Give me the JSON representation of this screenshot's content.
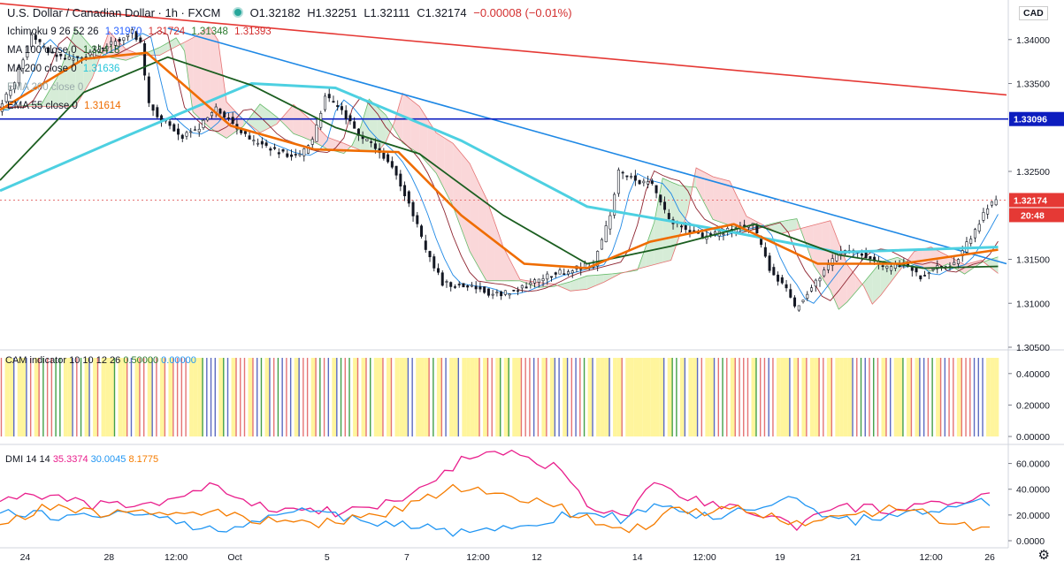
{
  "header": {
    "symbol": "U.S. Dollar / Canadian Dollar · 1h · FXCM",
    "ohlc": {
      "o": "O1.32182",
      "h": "H1.32251",
      "l": "L1.32111",
      "c": "C1.32174",
      "chg": "−0.00008 (−0.01%)"
    },
    "currency": "CAD"
  },
  "legends": {
    "ichimoku": {
      "label": "Ichimoku 9 26 52 26",
      "v1": "1.31970",
      "v2": "1.31724",
      "v3": "1.31348",
      "v4": "1.31393"
    },
    "ma100": {
      "label": "MA 100 close 0",
      "value": "1.31418"
    },
    "ma200": {
      "label": "MA 200 close 0",
      "value": "1.31636"
    },
    "ema200": {
      "label": "EMA 200 close 0",
      "value": ""
    },
    "ema55": {
      "label": "EMA 55 close 0",
      "value": "1.31614"
    },
    "cam": {
      "label": "CAM indicator 10 10 12 26",
      "v1": "0.50000",
      "v2": "0.00000"
    },
    "dmi": {
      "label": "DMI 14 14",
      "v1": "35.3374",
      "v2": "30.0045",
      "v3": "8.1775"
    }
  },
  "price_tags": {
    "hline": "1.33096",
    "last": "1.32174",
    "countdown": "20:48"
  },
  "colors": {
    "up_candle": "#26a69a",
    "candle": "#131722",
    "trend_red": "#e53935",
    "trend_blue": "#1e88e5",
    "hline": "#0d1dbf",
    "ema200": "#4dd0e1",
    "ema55": "#ef6c00",
    "ma100": "#1b5e20",
    "kumo_bear": "#f8c9cc",
    "kumo_bull": "#c8e6c9",
    "cam_red": "#e57373",
    "cam_blue": "#5c6bc0",
    "cam_yellow": "#fff59d",
    "cam_green": "#43a047",
    "dmi_plus": "#e91e8c",
    "dmi_minus": "#2196f3",
    "adx": "#f57c00"
  },
  "chart_data": [
    {
      "type": "candlestick",
      "title": "U.S. Dollar / Canadian Dollar · 1h · FXCM",
      "ylim": [
        1.305,
        1.3445
      ],
      "y_ticks": [
        "1.34000",
        "1.33500",
        "1.33096",
        "1.32500",
        "1.32174",
        "1.31500",
        "1.31000",
        "1.30500"
      ],
      "x_ticks": [
        "24",
        "28",
        "12:00",
        "Oct",
        "5",
        "7",
        "12:00",
        "12",
        "14",
        "12:00",
        "19",
        "21",
        "12:00",
        "26"
      ],
      "close_path": [
        [
          0,
          1.332
        ],
        [
          4,
          1.3352
        ],
        [
          8,
          1.3405
        ],
        [
          12,
          1.3385
        ],
        [
          16,
          1.3378
        ],
        [
          20,
          1.3378
        ],
        [
          24,
          1.3388
        ],
        [
          28,
          1.3398
        ],
        [
          32,
          1.341
        ],
        [
          34,
          1.3395
        ],
        [
          36,
          1.3325
        ],
        [
          40,
          1.3305
        ],
        [
          44,
          1.329
        ],
        [
          48,
          1.33
        ],
        [
          52,
          1.3322
        ],
        [
          56,
          1.3305
        ],
        [
          60,
          1.3285
        ],
        [
          64,
          1.3278
        ],
        [
          68,
          1.327
        ],
        [
          72,
          1.3268
        ],
        [
          75,
          1.3285
        ],
        [
          78,
          1.3335
        ],
        [
          82,
          1.332
        ],
        [
          86,
          1.329
        ],
        [
          90,
          1.3278
        ],
        [
          94,
          1.3255
        ],
        [
          98,
          1.3215
        ],
        [
          102,
          1.316
        ],
        [
          106,
          1.3123
        ],
        [
          110,
          1.312
        ],
        [
          114,
          1.3118
        ],
        [
          118,
          1.311
        ],
        [
          122,
          1.3112
        ],
        [
          126,
          1.312
        ],
        [
          130,
          1.313
        ],
        [
          134,
          1.3135
        ],
        [
          138,
          1.314
        ],
        [
          142,
          1.3145
        ],
        [
          146,
          1.32
        ],
        [
          148,
          1.325
        ],
        [
          152,
          1.324
        ],
        [
          156,
          1.3235
        ],
        [
          160,
          1.3195
        ],
        [
          164,
          1.3185
        ],
        [
          168,
          1.3175
        ],
        [
          172,
          1.318
        ],
        [
          176,
          1.3185
        ],
        [
          180,
          1.319
        ],
        [
          184,
          1.314
        ],
        [
          188,
          1.3115
        ],
        [
          190,
          1.3095
        ],
        [
          192,
          1.3105
        ],
        [
          196,
          1.313
        ],
        [
          200,
          1.3155
        ],
        [
          204,
          1.316
        ],
        [
          208,
          1.315
        ],
        [
          212,
          1.314
        ],
        [
          216,
          1.3145
        ],
        [
          220,
          1.313
        ],
        [
          224,
          1.314
        ],
        [
          228,
          1.3145
        ],
        [
          232,
          1.3175
        ],
        [
          236,
          1.321
        ],
        [
          238,
          1.3217
        ]
      ],
      "ema200": [
        [
          0,
          1.3228
        ],
        [
          30,
          1.329
        ],
        [
          60,
          1.335
        ],
        [
          80,
          1.3345
        ],
        [
          110,
          1.3285
        ],
        [
          140,
          1.321
        ],
        [
          170,
          1.3185
        ],
        [
          200,
          1.3158
        ],
        [
          238,
          1.3164
        ]
      ],
      "ema55": [
        [
          0,
          1.332
        ],
        [
          20,
          1.3378
        ],
        [
          35,
          1.3385
        ],
        [
          55,
          1.3302
        ],
        [
          75,
          1.3275
        ],
        [
          95,
          1.3272
        ],
        [
          110,
          1.32
        ],
        [
          125,
          1.3145
        ],
        [
          140,
          1.314
        ],
        [
          155,
          1.317
        ],
        [
          175,
          1.319
        ],
        [
          195,
          1.3145
        ],
        [
          215,
          1.3145
        ],
        [
          238,
          1.3161
        ]
      ],
      "ma100": [
        [
          0,
          1.324
        ],
        [
          20,
          1.334
        ],
        [
          40,
          1.338
        ],
        [
          60,
          1.3348
        ],
        [
          80,
          1.33
        ],
        [
          100,
          1.327
        ],
        [
          120,
          1.32
        ],
        [
          140,
          1.3145
        ],
        [
          160,
          1.3165
        ],
        [
          180,
          1.319
        ],
        [
          200,
          1.3155
        ],
        [
          220,
          1.314
        ],
        [
          238,
          1.3142
        ]
      ],
      "hline": 1.33096,
      "last": 1.32174,
      "trendlines": {
        "red": [
          [
            0,
            1.3441
          ],
          [
            240,
            1.3337
          ]
        ],
        "blue": [
          [
            40,
            1.3413
          ],
          [
            240,
            1.3145
          ]
        ]
      }
    },
    {
      "type": "bar",
      "title": "CAM indicator 10 10 12 26",
      "ylim": [
        0,
        0.5
      ],
      "y_ticks": [
        "0.40000",
        "0.20000",
        "0.00000"
      ]
    },
    {
      "type": "line",
      "title": "DMI 14 14",
      "ylim": [
        0,
        70
      ],
      "y_ticks": [
        "60.0000",
        "40.0000",
        "20.0000",
        "0.0000"
      ],
      "series": [
        {
          "name": "",
          "color_key": "dmi_plus",
          "values": [
            [
              0,
              33
            ],
            [
              10,
              36
            ],
            [
              20,
              28
            ],
            [
              30,
              27
            ],
            [
              40,
              30
            ],
            [
              52,
              44
            ],
            [
              60,
              27
            ],
            [
              80,
              22
            ],
            [
              95,
              30
            ],
            [
              110,
              62
            ],
            [
              120,
              68
            ],
            [
              135,
              55
            ],
            [
              140,
              28
            ],
            [
              150,
              20
            ],
            [
              155,
              48
            ],
            [
              165,
              32
            ],
            [
              180,
              22
            ],
            [
              190,
              12
            ],
            [
              200,
              26
            ],
            [
              215,
              24
            ],
            [
              225,
              28
            ],
            [
              236,
              35
            ]
          ]
        },
        {
          "name": "",
          "color_key": "dmi_minus",
          "values": [
            [
              0,
              24
            ],
            [
              15,
              18
            ],
            [
              30,
              22
            ],
            [
              52,
              8
            ],
            [
              70,
              24
            ],
            [
              90,
              14
            ],
            [
              110,
              6
            ],
            [
              130,
              16
            ],
            [
              140,
              22
            ],
            [
              150,
              16
            ],
            [
              155,
              28
            ],
            [
              170,
              18
            ],
            [
              190,
              32
            ],
            [
              200,
              14
            ],
            [
              215,
              22
            ],
            [
              225,
              24
            ],
            [
              236,
              30
            ]
          ]
        },
        {
          "name": "",
          "color_key": "adx",
          "values": [
            [
              0,
              10
            ],
            [
              10,
              26
            ],
            [
              30,
              20
            ],
            [
              52,
              22
            ],
            [
              70,
              12
            ],
            [
              90,
              18
            ],
            [
              108,
              42
            ],
            [
              120,
              38
            ],
            [
              135,
              24
            ],
            [
              150,
              6
            ],
            [
              160,
              22
            ],
            [
              180,
              24
            ],
            [
              190,
              12
            ],
            [
              200,
              18
            ],
            [
              215,
              26
            ],
            [
              225,
              16
            ],
            [
              236,
              8
            ]
          ]
        }
      ]
    }
  ]
}
